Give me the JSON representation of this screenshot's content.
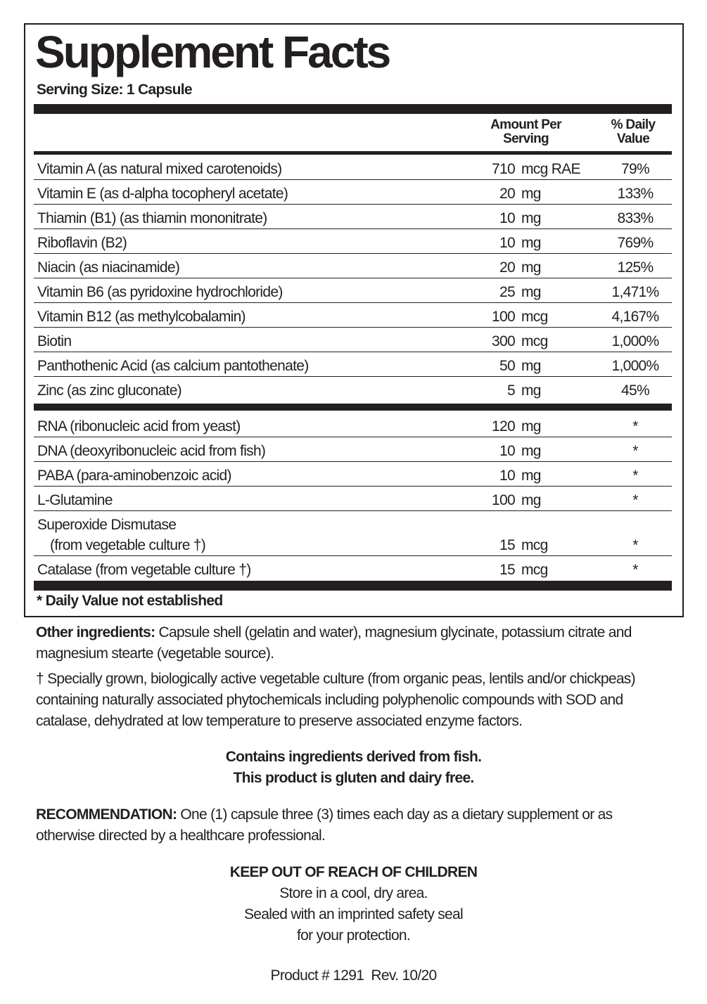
{
  "title": "Supplement Facts",
  "serving_size": "Serving Size: 1 Capsule",
  "header": {
    "amount": [
      "Amount Per",
      "Serving"
    ],
    "dv": [
      "% Daily",
      "Value"
    ]
  },
  "vitamins": [
    {
      "name": "Vitamin A (as natural mixed carotenoids)",
      "amount": "710",
      "unit": "mcg RAE",
      "dv": "79%"
    },
    {
      "name": "Vitamin E (as d-alpha tocopheryl acetate)",
      "amount": "20",
      "unit": "mg",
      "dv": "133%"
    },
    {
      "name": "Thiamin (B1) (as thiamin mononitrate)",
      "amount": "10",
      "unit": "mg",
      "dv": "833%"
    },
    {
      "name": "Riboflavin (B2)",
      "amount": "10",
      "unit": "mg",
      "dv": "769%"
    },
    {
      "name": "Niacin (as niacinamide)",
      "amount": "20",
      "unit": "mg",
      "dv": "125%"
    },
    {
      "name": "Vitamin B6 (as pyridoxine hydrochloride)",
      "amount": "25",
      "unit": "mg",
      "dv": "1,471%"
    },
    {
      "name": "Vitamin B12 (as methylcobalamin)",
      "amount": "100",
      "unit": "mcg",
      "dv": "4,167%"
    },
    {
      "name": "Biotin",
      "amount": "300",
      "unit": "mcg",
      "dv": "1,000%"
    },
    {
      "name": "Panthothenic Acid (as calcium pantothenate)",
      "amount": "50",
      "unit": "mg",
      "dv": "1,000%"
    },
    {
      "name": "Zinc (as zinc gluconate)",
      "amount": "5",
      "unit": "mg",
      "dv": "45%"
    }
  ],
  "others": [
    {
      "name": "RNA (ribonucleic acid from yeast)",
      "amount": "120",
      "unit": "mg",
      "dv": "*"
    },
    {
      "name": "DNA (deoxyribonucleic acid from fish)",
      "amount": "10",
      "unit": "mg",
      "dv": "*"
    },
    {
      "name": "PABA (para-aminobenzoic acid)",
      "amount": "10",
      "unit": "mg",
      "dv": "*"
    },
    {
      "name": "L-Glutamine",
      "amount": "100",
      "unit": "mg",
      "dv": "*"
    },
    {
      "name": "Superoxide Dismutase",
      "name2": "(from vegetable culture †)",
      "amount": "15",
      "unit": "mcg",
      "dv": "*"
    },
    {
      "name": "Catalase (from vegetable culture †)",
      "amount": "15",
      "unit": "mcg",
      "dv": "*"
    }
  ],
  "footnote": "* Daily Value not established",
  "other_ingredients": {
    "label": "Other ingredients:",
    "text": " Capsule shell (gelatin and water), magnesium glycinate, potassium citrate and magnesium stearte (vegetable source)."
  },
  "dagger_note": "† Specially grown, biologically active vegetable culture (from organic peas, lentils and/or chickpeas) containing naturally associated phytochemicals including polyphenolic compounds with SOD and catalase, dehydrated at low temperature to preserve associated enzyme factors.",
  "allergen": [
    "Contains ingredients derived from fish.",
    "This product is gluten and dairy free."
  ],
  "recommendation": {
    "label": "RECOMMENDATION:",
    "text": " One (1) capsule three (3) times each day as a dietary supplement or as otherwise directed by a healthcare professional."
  },
  "warning": "KEEP OUT OF REACH OF CHILDREN",
  "storage": [
    "Store in a cool, dry area.",
    "Sealed with an imprinted safety seal",
    "for your protection."
  ],
  "product": "Product # 1291  Rev. 10/20"
}
